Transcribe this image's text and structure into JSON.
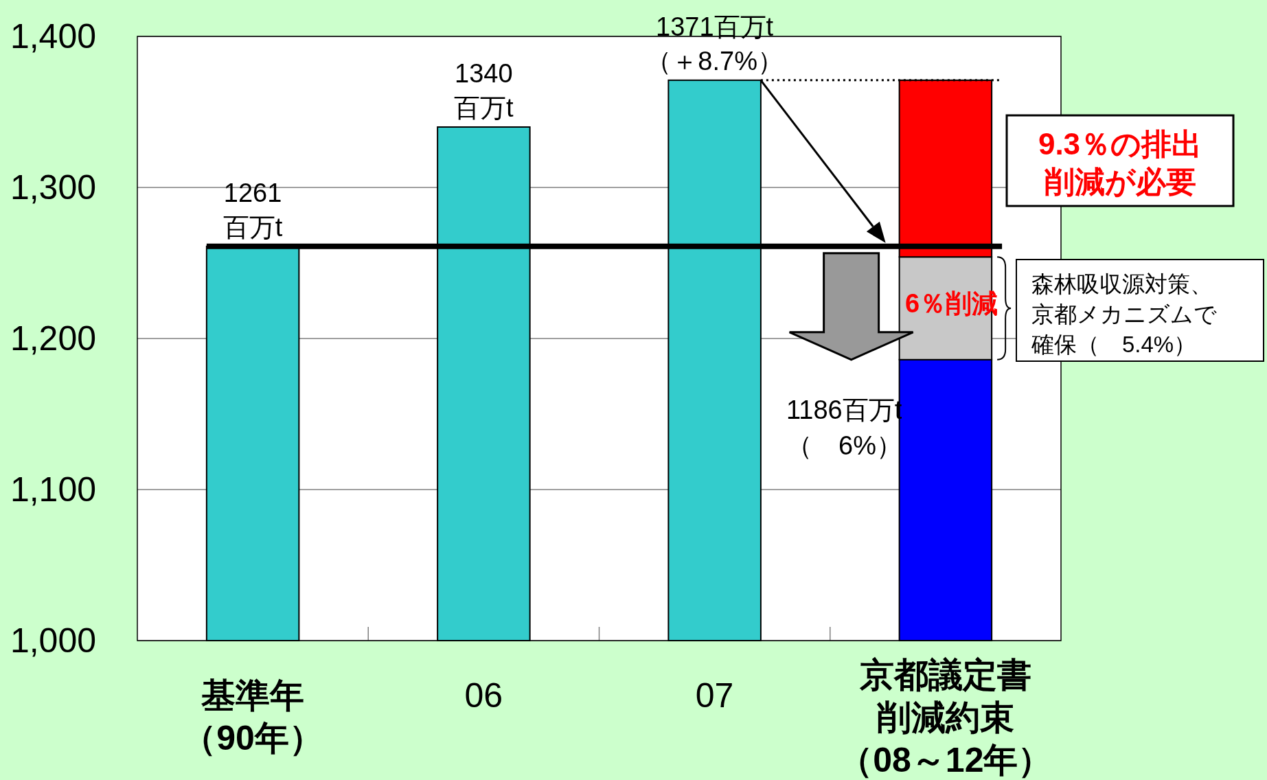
{
  "chart_data": {
    "type": "bar",
    "stacked": true,
    "categories": [
      "基準年（90年）",
      "06",
      "07",
      "京都議定書削減約束（08～12年）"
    ],
    "series": [
      {
        "color": "#33cccc",
        "values": [
          1261,
          1340,
          1371,
          null
        ],
        "value_labels": [
          "1261\n百万t",
          "1340\n百万t",
          "1371百万t\n（＋8.7%）",
          null
        ]
      },
      {
        "color": "#0000ff",
        "values": [
          null,
          null,
          null,
          1186
        ]
      },
      {
        "color": "#c8c8c8",
        "values": [
          null,
          null,
          null,
          68
        ],
        "base": [
          null,
          null,
          null,
          1186
        ]
      },
      {
        "color": "#ff0000",
        "values": [
          null,
          null,
          null,
          117
        ],
        "base": [
          null,
          null,
          null,
          1254
        ]
      }
    ],
    "ylim": [
      1000,
      1400
    ],
    "yticks": [
      {
        "value": 1000,
        "label": "1,000"
      },
      {
        "value": 1100,
        "label": "1,100"
      },
      {
        "value": 1200,
        "label": "1,200"
      },
      {
        "value": 1300,
        "label": "1,300"
      },
      {
        "value": 1400,
        "label": "1,400"
      }
    ],
    "grid": "y",
    "ref_lines": [
      {
        "axis": "y",
        "value": 1261,
        "color": "#000000",
        "line_style": "solid"
      },
      {
        "axis": "y",
        "value": 1371,
        "color": "#000000",
        "line_style": "dotted"
      }
    ],
    "annotations": [
      "9.3％の排出削減が必要",
      "6％削減",
      "森林吸収源対策、京都メカニズムで確保（　5.4%）",
      "1186百万t（　6%）"
    ]
  }
}
